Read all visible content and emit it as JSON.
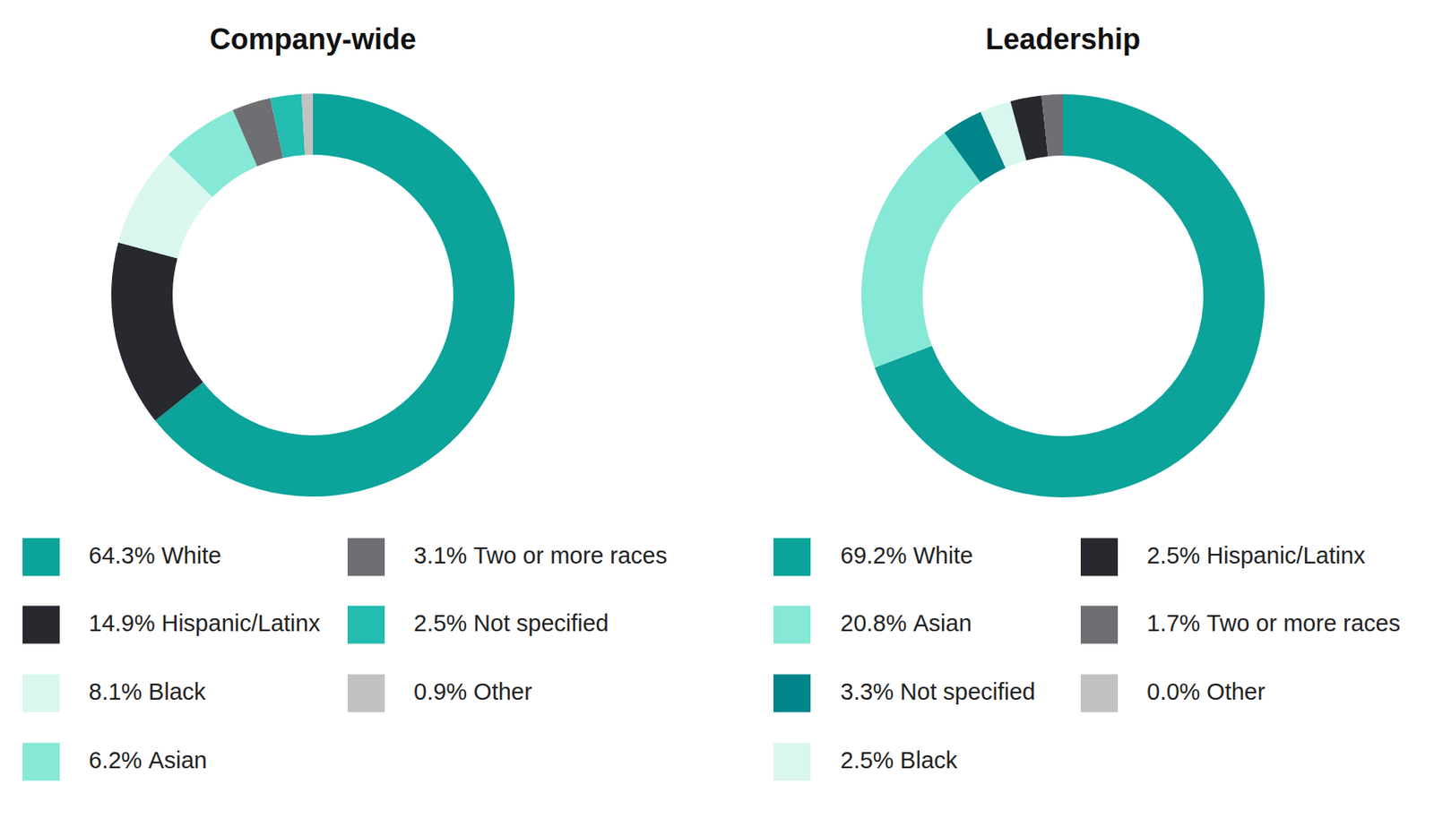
{
  "chart_data": [
    {
      "type": "donut",
      "title": "Company-wide",
      "categories": [
        "White",
        "Hispanic/Latinx",
        "Black",
        "Asian",
        "Two or more races",
        "Not specified",
        "Other"
      ],
      "values": [
        64.3,
        14.9,
        8.1,
        6.2,
        3.1,
        2.5,
        0.9
      ],
      "value_labels": [
        "64.3%",
        "14.9%",
        "8.1%",
        "6.2%",
        "3.1%",
        "2.5%",
        "0.9%"
      ],
      "colors": [
        "#0ba39a",
        "#27292e",
        "#d9f7ef",
        "#86e8d6",
        "#6e6e73",
        "#22bcb0",
        "#c2c2c2"
      ]
    },
    {
      "type": "donut",
      "title": "Leadership",
      "categories": [
        "White",
        "Asian",
        "Not specified",
        "Black",
        "Hispanic/Latinx",
        "Two or more races",
        "Other"
      ],
      "values": [
        69.2,
        20.8,
        3.3,
        2.5,
        2.5,
        1.7,
        0.0
      ],
      "value_labels": [
        "69.2%",
        "20.8%",
        "3.3%",
        "2.5%",
        "2.5%",
        "1.7%",
        "0.0%"
      ],
      "colors": [
        "#0ba39a",
        "#86e8d6",
        "#00868a",
        "#d9f7ef",
        "#27292e",
        "#6e6e73",
        "#c2c2c2"
      ]
    }
  ]
}
